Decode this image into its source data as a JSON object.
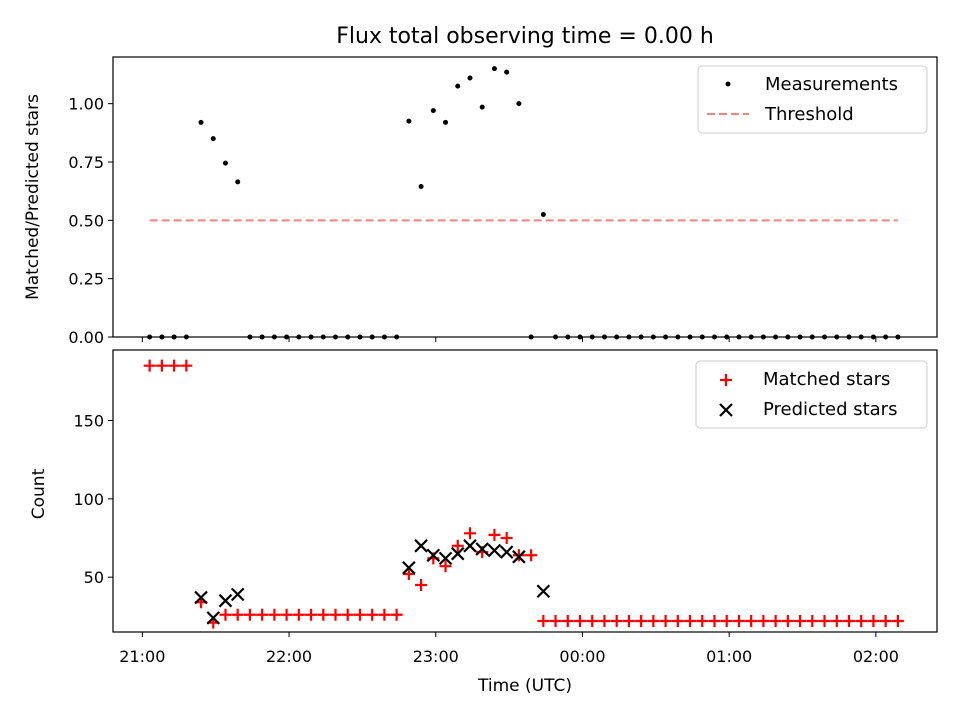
{
  "chart_data": [
    {
      "type": "scatter",
      "title": "Flux total observing time = 0.00 h",
      "xlabel": "",
      "ylabel": "Matched/Predicted stars",
      "ylim": [
        0,
        1.2
      ],
      "xlim": [
        "20:48",
        "02:25"
      ],
      "x_ticks": [
        "21:00",
        "22:00",
        "23:00",
        "00:00",
        "01:00",
        "02:00"
      ],
      "y_ticks": [
        "0.00",
        "0.25",
        "0.50",
        "0.75",
        "1.00"
      ],
      "legend_position": "upper right",
      "grid": false,
      "series": [
        {
          "name": "Measurements",
          "kind": "points",
          "color": "#000000",
          "points": [
            [
              "21:03",
              0
            ],
            [
              "21:08",
              0
            ],
            [
              "21:13",
              0
            ],
            [
              "21:18",
              0
            ],
            [
              "21:24",
              0.92
            ],
            [
              "21:29",
              0.85
            ],
            [
              "21:34",
              0.745
            ],
            [
              "21:39",
              0.665
            ],
            [
              "21:44",
              0
            ],
            [
              "21:49",
              0
            ],
            [
              "21:54",
              0
            ],
            [
              "21:59",
              0
            ],
            [
              "22:04",
              0
            ],
            [
              "22:09",
              0
            ],
            [
              "22:14",
              0
            ],
            [
              "22:19",
              0
            ],
            [
              "22:24",
              0
            ],
            [
              "22:29",
              0
            ],
            [
              "22:34",
              0
            ],
            [
              "22:39",
              0
            ],
            [
              "22:44",
              0
            ],
            [
              "22:49",
              0.925
            ],
            [
              "22:54",
              0.645
            ],
            [
              "22:59",
              0.97
            ],
            [
              "23:04",
              0.92
            ],
            [
              "23:09",
              1.075
            ],
            [
              "23:14",
              1.11
            ],
            [
              "23:19",
              0.985
            ],
            [
              "23:24",
              1.15
            ],
            [
              "23:29",
              1.135
            ],
            [
              "23:34",
              1.0
            ],
            [
              "23:39",
              0
            ],
            [
              "23:44",
              0.525
            ],
            [
              "23:49",
              0
            ],
            [
              "23:54",
              0
            ],
            [
              "23:59",
              0
            ],
            [
              "00:04",
              0
            ],
            [
              "00:09",
              0
            ],
            [
              "00:14",
              0
            ],
            [
              "00:19",
              0
            ],
            [
              "00:24",
              0
            ],
            [
              "00:29",
              0
            ],
            [
              "00:34",
              0
            ],
            [
              "00:39",
              0
            ],
            [
              "00:44",
              0
            ],
            [
              "00:49",
              0
            ],
            [
              "00:54",
              0
            ],
            [
              "00:59",
              0
            ],
            [
              "01:04",
              0
            ],
            [
              "01:09",
              0
            ],
            [
              "01:14",
              0
            ],
            [
              "01:19",
              0
            ],
            [
              "01:24",
              0
            ],
            [
              "01:29",
              0
            ],
            [
              "01:34",
              0
            ],
            [
              "01:39",
              0
            ],
            [
              "01:44",
              0
            ],
            [
              "01:49",
              0
            ],
            [
              "01:54",
              0
            ],
            [
              "01:59",
              0
            ],
            [
              "02:04",
              0
            ],
            [
              "02:09",
              0
            ]
          ]
        },
        {
          "name": "Threshold",
          "kind": "dashed-line",
          "color": "#ff7f7f",
          "points": [
            [
              "21:03",
              0.5
            ],
            [
              "02:09",
              0.5
            ]
          ]
        }
      ]
    },
    {
      "type": "scatter",
      "title": "",
      "xlabel": "Time (UTC)",
      "ylabel": "Count",
      "ylim": [
        15,
        195
      ],
      "xlim": [
        "20:48",
        "02:25"
      ],
      "x_ticks": [
        "21:00",
        "22:00",
        "23:00",
        "00:00",
        "01:00",
        "02:00"
      ],
      "y_ticks": [
        "50",
        "100",
        "150"
      ],
      "legend_position": "upper right",
      "grid": false,
      "series": [
        {
          "name": "Matched stars",
          "kind": "plus",
          "color": "#ff0000",
          "points": [
            [
              "21:03",
              185
            ],
            [
              "21:08",
              185
            ],
            [
              "21:13",
              185
            ],
            [
              "21:18",
              185
            ],
            [
              "21:24",
              34
            ],
            [
              "21:29",
              21
            ],
            [
              "21:34",
              26
            ],
            [
              "21:39",
              26
            ],
            [
              "21:44",
              26
            ],
            [
              "21:49",
              26
            ],
            [
              "21:54",
              26
            ],
            [
              "21:59",
              26
            ],
            [
              "22:04",
              26
            ],
            [
              "22:09",
              26
            ],
            [
              "22:14",
              26
            ],
            [
              "22:19",
              26
            ],
            [
              "22:24",
              26
            ],
            [
              "22:29",
              26
            ],
            [
              "22:34",
              26
            ],
            [
              "22:39",
              26
            ],
            [
              "22:44",
              26
            ],
            [
              "22:49",
              52
            ],
            [
              "22:54",
              45
            ],
            [
              "22:59",
              62
            ],
            [
              "23:04",
              57
            ],
            [
              "23:09",
              70
            ],
            [
              "23:14",
              78
            ],
            [
              "23:19",
              66
            ],
            [
              "23:24",
              77
            ],
            [
              "23:29",
              75
            ],
            [
              "23:34",
              64
            ],
            [
              "23:39",
              64
            ],
            [
              "23:44",
              22
            ],
            [
              "23:49",
              22
            ],
            [
              "23:54",
              22
            ],
            [
              "23:59",
              22
            ],
            [
              "00:04",
              22
            ],
            [
              "00:09",
              22
            ],
            [
              "00:14",
              22
            ],
            [
              "00:19",
              22
            ],
            [
              "00:24",
              22
            ],
            [
              "00:29",
              22
            ],
            [
              "00:34",
              22
            ],
            [
              "00:39",
              22
            ],
            [
              "00:44",
              22
            ],
            [
              "00:49",
              22
            ],
            [
              "00:54",
              22
            ],
            [
              "00:59",
              22
            ],
            [
              "01:04",
              22
            ],
            [
              "01:09",
              22
            ],
            [
              "01:14",
              22
            ],
            [
              "01:19",
              22
            ],
            [
              "01:24",
              22
            ],
            [
              "01:29",
              22
            ],
            [
              "01:34",
              22
            ],
            [
              "01:39",
              22
            ],
            [
              "01:44",
              22
            ],
            [
              "01:49",
              22
            ],
            [
              "01:54",
              22
            ],
            [
              "01:59",
              22
            ],
            [
              "02:04",
              22
            ],
            [
              "02:09",
              22
            ]
          ]
        },
        {
          "name": "Predicted stars",
          "kind": "cross",
          "color": "#000000",
          "points": [
            [
              "21:24",
              37
            ],
            [
              "21:29",
              24
            ],
            [
              "21:34",
              35
            ],
            [
              "21:39",
              39
            ],
            [
              "22:49",
              56
            ],
            [
              "22:54",
              70
            ],
            [
              "22:59",
              64
            ],
            [
              "23:04",
              62
            ],
            [
              "23:09",
              65
            ],
            [
              "23:14",
              70
            ],
            [
              "23:19",
              68
            ],
            [
              "23:24",
              67
            ],
            [
              "23:29",
              66
            ],
            [
              "23:34",
              63
            ],
            [
              "23:44",
              41
            ]
          ]
        }
      ]
    }
  ]
}
